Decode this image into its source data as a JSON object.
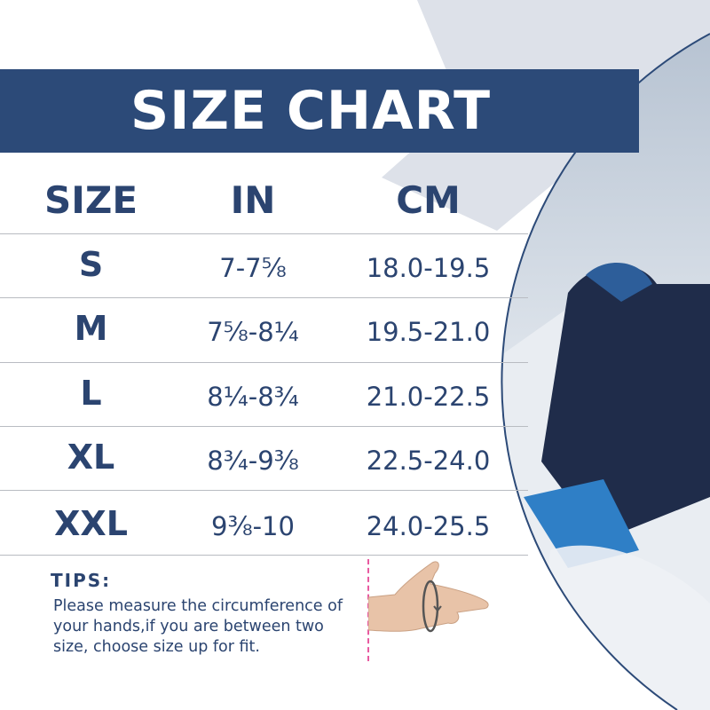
{
  "title": "SIZE CHART",
  "headers": {
    "size": "SIZE",
    "in": "IN",
    "cm": "CM"
  },
  "rows": [
    {
      "size": "S",
      "in": "7-7⅝",
      "cm": "18.0-19.5"
    },
    {
      "size": "M",
      "in": "7⅝-8¼",
      "cm": "19.5-21.0"
    },
    {
      "size": "L",
      "in": "8¼-8¾",
      "cm": "21.0-22.5"
    },
    {
      "size": "XL",
      "in": "8¾-9⅜",
      "cm": "22.5-24.0"
    },
    {
      "size": "XXL",
      "in": "9⅜-10",
      "cm": "24.0-25.5"
    }
  ],
  "tips": {
    "title": "TIPS:",
    "body": "Please measure the circumference of your hands,if you are between two size, choose size up for fit."
  },
  "colors": {
    "navy": "#2c4a78",
    "text": "#2b4470",
    "measure_line": "#e85aa0"
  },
  "icons": [
    "hand-measure-image",
    "snowmobile-rider-photo"
  ]
}
